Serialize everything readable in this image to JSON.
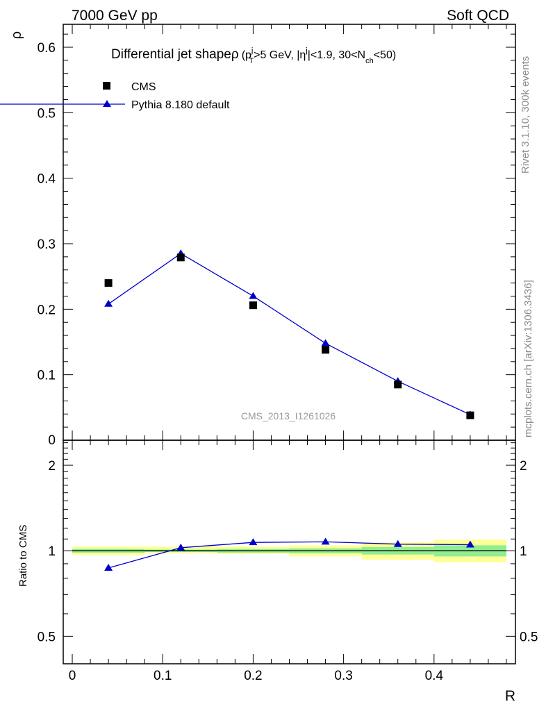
{
  "header": {
    "left": "7000 GeV pp",
    "right": "Soft QCD"
  },
  "side_labels": {
    "top": "Rivet 3.1.10,  300k events",
    "bottom": "mcplots.cern.ch [arXiv:1306.3436]"
  },
  "chart_data": {
    "type": "scatter",
    "title": "Differential jet shape ρ (p_T^j>5 GeV, |η^j|<1.9, 30<N_ch<50)",
    "title_parts": {
      "main": "Differential jet shape",
      "rho": "ρ",
      "p": "(p",
      "p_sup": "j",
      "p_sub": "T",
      "cut1": ">5 GeV, |η",
      "eta_sup": "j",
      "cut2": "|<1.9, 30<N",
      "n_sub": "ch",
      "cut3": "<50)"
    },
    "analysis_label": "CMS_2013_I1261026",
    "xlabel": "R",
    "ylabel": "ρ",
    "ratio_ylabel": "Ratio to CMS",
    "xlim": [
      -0.01,
      0.49
    ],
    "ylim": [
      0,
      0.635
    ],
    "ratio_ylim": [
      0.4,
      2.45
    ],
    "ratio_scale": "log",
    "x_ticks": [
      "0",
      "0.1",
      "0.2",
      "0.3",
      "0.4"
    ],
    "y_ticks": [
      "0.1",
      "0.2",
      "0.3",
      "0.4",
      "0.5",
      "0.6"
    ],
    "y_zero_label": "0",
    "ratio_ticks": [
      "0.5",
      "1",
      "2"
    ],
    "legend": {
      "position": "top-left"
    },
    "bins": [
      [
        0.0,
        0.08
      ],
      [
        0.08,
        0.16
      ],
      [
        0.16,
        0.24
      ],
      [
        0.24,
        0.32
      ],
      [
        0.32,
        0.4
      ],
      [
        0.4,
        0.48
      ]
    ],
    "series": [
      {
        "name": "CMS",
        "marker": "square",
        "color": "#000000",
        "x": [
          0.04,
          0.12,
          0.2,
          0.28,
          0.36,
          0.44
        ],
        "y": [
          0.24,
          0.279,
          0.206,
          0.138,
          0.085,
          0.038
        ]
      },
      {
        "name": "Pythia 8.180 default",
        "marker": "triangle",
        "color": "#0000cc",
        "x": [
          0.04,
          0.12,
          0.2,
          0.28,
          0.36,
          0.44
        ],
        "y": [
          0.208,
          0.285,
          0.22,
          0.148,
          0.09,
          0.039
        ],
        "ratio": [
          0.87,
          1.025,
          1.07,
          1.075,
          1.055,
          1.05
        ]
      }
    ],
    "ratio_band_stat": {
      "color": "#90ee90",
      "low": [
        0.985,
        0.99,
        0.985,
        0.98,
        0.97,
        0.955
      ],
      "high": [
        1.015,
        1.01,
        1.015,
        1.02,
        1.03,
        1.045
      ]
    },
    "ratio_band_total": {
      "color": "#ffff99",
      "low": [
        0.965,
        0.98,
        0.975,
        0.955,
        0.93,
        0.91
      ],
      "high": [
        1.035,
        1.035,
        1.035,
        1.045,
        1.07,
        1.095
      ]
    }
  }
}
